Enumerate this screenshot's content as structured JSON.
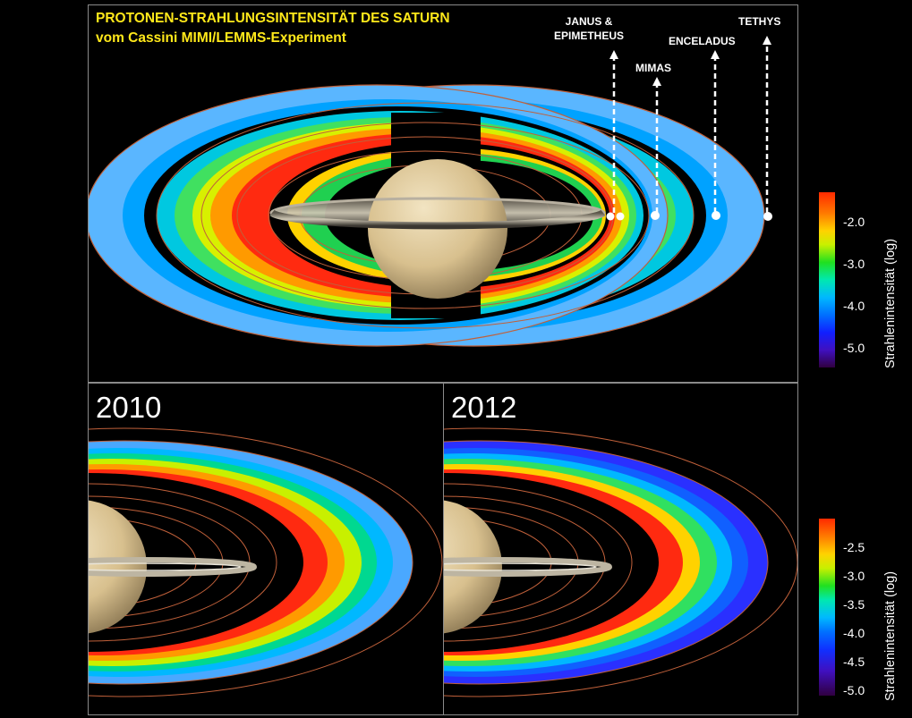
{
  "top_panel": {
    "title_line1": "PROTONEN-STRAHLUNGSINTENSITÄT  DES SATURN",
    "title_line2": "vom Cassini MIMI/LEMMS-Experiment",
    "moons": [
      {
        "id": "janus",
        "line1": "JANUS &",
        "line2": "EPIMETHEUS"
      },
      {
        "id": "mimas",
        "line1": "MIMAS",
        "line2": ""
      },
      {
        "id": "enceladus",
        "line1": "ENCELADUS",
        "line2": ""
      },
      {
        "id": "tethys",
        "line1": "TETHYS",
        "line2": ""
      }
    ]
  },
  "panel_2010": {
    "year": "2010"
  },
  "panel_2012": {
    "year": "2012"
  },
  "colorbar_top": {
    "label": "Strahlenintensität (log)",
    "ticks": [
      "-2.0",
      "-3.0",
      "-4.0",
      "-5.0"
    ]
  },
  "colorbar_bottom": {
    "label": "Strahlenintensität  (log)",
    "ticks": [
      "-2.5",
      "-3.0",
      "-3.5",
      "-4.0",
      "-4.5",
      "-5.0"
    ]
  },
  "colors": {
    "title": "#ffe81a",
    "orbit": "#c0603a",
    "panel_border": "#8a8a8a"
  }
}
